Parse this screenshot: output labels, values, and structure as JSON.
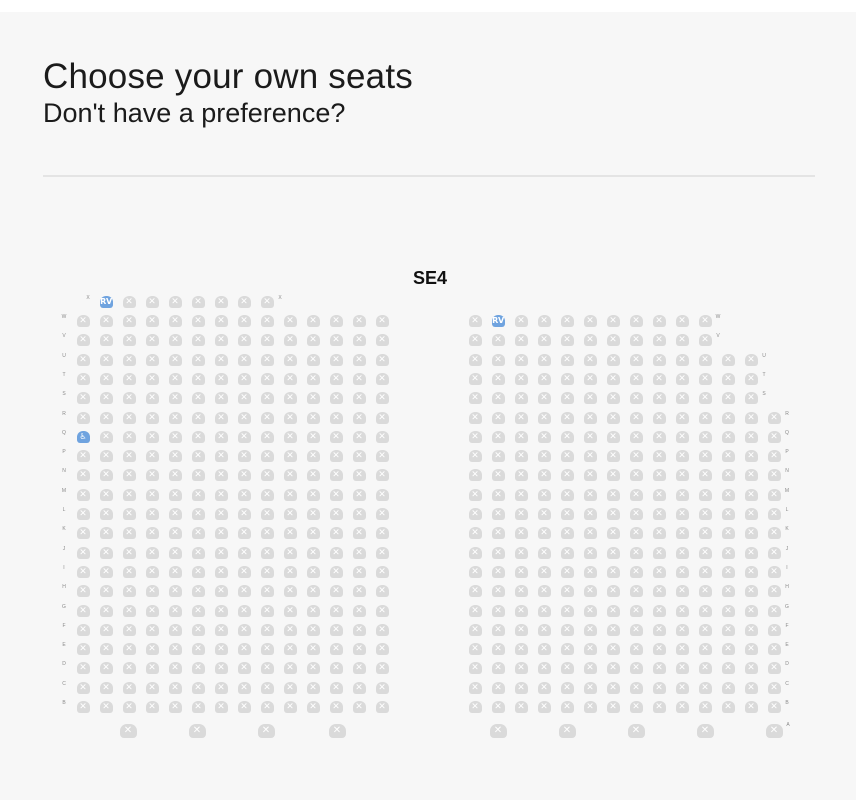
{
  "header": {
    "title": "Choose your own seats",
    "subtitle": "Don't have a preference?"
  },
  "seatmap": {
    "section_label": "SE4",
    "legend": {
      "unavailable_glyph": "✕",
      "reserved_glyph": "RV",
      "accessible_glyph": "♿"
    },
    "colors": {
      "seat_unavailable": "#dadada",
      "seat_reserved": "#6fa3df",
      "background": "#f7f7f7"
    },
    "left_block": {
      "rows": [
        "X",
        "W",
        "V",
        "U",
        "T",
        "S",
        "R",
        "Q",
        "P",
        "N",
        "M",
        "L",
        "K",
        "J",
        "I",
        "H",
        "G",
        "F",
        "E",
        "D",
        "C",
        "B"
      ],
      "special_seats": [
        {
          "row": "X",
          "seat": 1,
          "status": "reserved"
        },
        {
          "row": "Q",
          "seat": 1,
          "status": "accessible"
        }
      ]
    },
    "right_block": {
      "rows": [
        "W",
        "V",
        "U",
        "T",
        "S",
        "R",
        "Q",
        "P",
        "N",
        "M",
        "L",
        "K",
        "J",
        "I",
        "H",
        "G",
        "F",
        "E",
        "D",
        "C",
        "B",
        "A"
      ],
      "special_seats": [
        {
          "row": "W",
          "seat": 2,
          "status": "reserved"
        }
      ]
    }
  }
}
